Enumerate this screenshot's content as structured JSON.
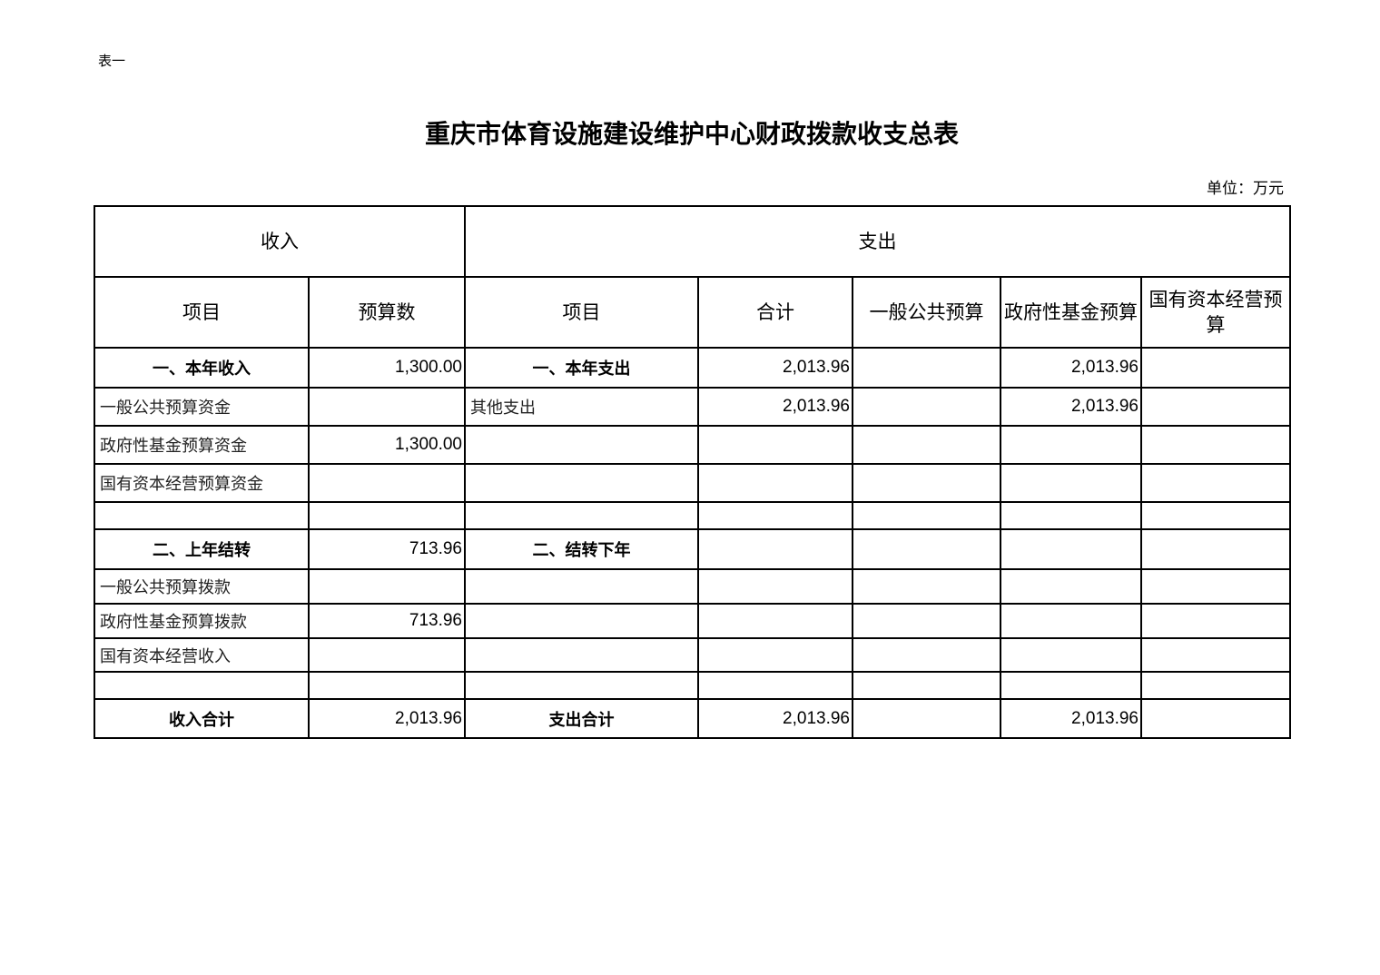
{
  "table_tag": "表一",
  "title": "重庆市体育设施建设维护中心财政拨款收支总表",
  "unit": "单位：万元",
  "header": {
    "income": "收入",
    "expense": "支出",
    "columns": [
      "项目",
      "预算数",
      "项目",
      "合计",
      "一般公共预算",
      "政府性基金预算",
      "国有资本经营预算"
    ]
  },
  "rows": [
    {
      "type": "section",
      "cells": [
        "一、本年收入",
        "1,300.00",
        "一、本年支出",
        "2,013.96",
        "",
        "2,013.96",
        ""
      ]
    },
    {
      "type": "item",
      "cells": [
        "一般公共预算资金",
        "",
        "其他支出",
        "2,013.96",
        "",
        "2,013.96",
        ""
      ]
    },
    {
      "type": "item",
      "cells": [
        "政府性基金预算资金",
        "1,300.00",
        "",
        "",
        "",
        "",
        ""
      ]
    },
    {
      "type": "item",
      "cells": [
        "国有资本经营预算资金",
        "",
        "",
        "",
        "",
        "",
        ""
      ]
    },
    {
      "type": "blank",
      "cells": [
        "",
        "",
        "",
        "",
        "",
        "",
        ""
      ]
    },
    {
      "type": "section",
      "cells": [
        "二、上年结转",
        "713.96",
        "二、结转下年",
        "",
        "",
        "",
        ""
      ]
    },
    {
      "type": "item",
      "cells": [
        "一般公共预算拨款",
        "",
        "",
        "",
        "",
        "",
        ""
      ]
    },
    {
      "type": "item",
      "cells": [
        "政府性基金预算拨款",
        "713.96",
        "",
        "",
        "",
        "",
        ""
      ]
    },
    {
      "type": "item",
      "cells": [
        "国有资本经营收入",
        "",
        "",
        "",
        "",
        "",
        ""
      ]
    },
    {
      "type": "blank",
      "cells": [
        "",
        "",
        "",
        "",
        "",
        "",
        ""
      ]
    },
    {
      "type": "section",
      "cells": [
        "收入合计",
        "2,013.96",
        "支出合计",
        "2,013.96",
        "",
        "2,013.96",
        ""
      ]
    }
  ]
}
